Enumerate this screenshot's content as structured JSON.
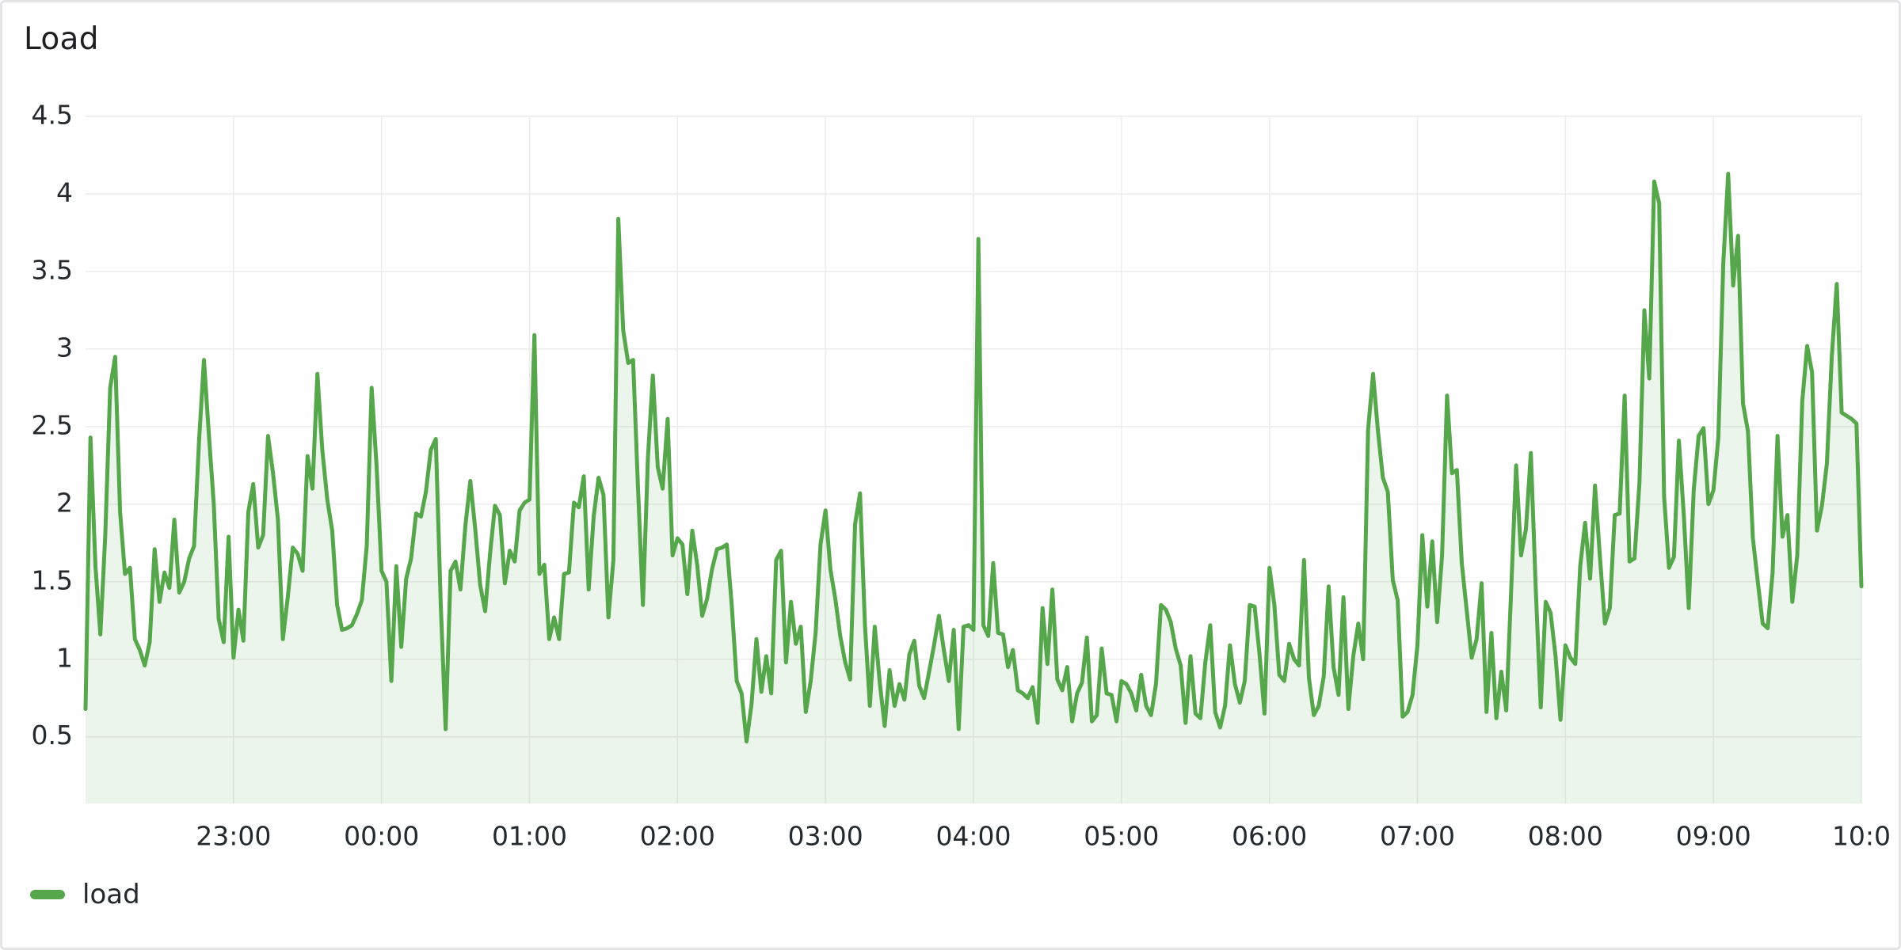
{
  "panel": {
    "title": "Load"
  },
  "chart_data": {
    "type": "area",
    "title": "Load",
    "xlabel": "",
    "ylabel": "",
    "ylim": [
      0.07,
      4.5
    ],
    "xlim": [
      "22:00",
      "10:00"
    ],
    "y_ticks": [
      "0.5",
      "1",
      "1.5",
      "2",
      "2.5",
      "3",
      "3.5",
      "4",
      "4.5"
    ],
    "x_ticks": [
      "23:00",
      "00:00",
      "01:00",
      "02:00",
      "03:00",
      "04:00",
      "05:00",
      "06:00",
      "07:00",
      "08:00",
      "09:00",
      "10:0"
    ],
    "grid": true,
    "legend": "bottom-left",
    "colors": {
      "line": "#56a64b",
      "fill": "#56a64b",
      "grid": "#ececec"
    },
    "series": [
      {
        "name": "load",
        "x": [
          "22:00",
          "22:02",
          "22:04",
          "22:06",
          "22:08",
          "22:10",
          "22:12",
          "22:14",
          "22:16",
          "22:18",
          "22:20",
          "22:22",
          "22:24",
          "22:26",
          "22:28",
          "22:30",
          "22:32",
          "22:34",
          "22:36",
          "22:38",
          "22:40",
          "22:42",
          "22:44",
          "22:46",
          "22:48",
          "22:50",
          "22:52",
          "22:54",
          "22:56",
          "22:58",
          "23:00",
          "23:02",
          "23:04",
          "23:06",
          "23:08",
          "23:10",
          "23:12",
          "23:14",
          "23:16",
          "23:18",
          "23:20",
          "23:22",
          "23:24",
          "23:26",
          "23:28",
          "23:30",
          "23:32",
          "23:34",
          "23:36",
          "23:38",
          "23:40",
          "23:42",
          "23:44",
          "23:46",
          "23:48",
          "23:50",
          "23:52",
          "23:54",
          "23:56",
          "23:58",
          "00:00",
          "00:02",
          "00:04",
          "00:06",
          "00:08",
          "00:10",
          "00:12",
          "00:14",
          "00:16",
          "00:18",
          "00:20",
          "00:22",
          "00:24",
          "00:26",
          "00:28",
          "00:30",
          "00:32",
          "00:34",
          "00:36",
          "00:38",
          "00:40",
          "00:42",
          "00:44",
          "00:46",
          "00:48",
          "00:50",
          "00:52",
          "00:54",
          "00:56",
          "00:58",
          "01:00",
          "01:02",
          "01:04",
          "01:06",
          "01:08",
          "01:10",
          "01:12",
          "01:14",
          "01:16",
          "01:18",
          "01:20",
          "01:22",
          "01:24",
          "01:26",
          "01:28",
          "01:30",
          "01:32",
          "01:34",
          "01:36",
          "01:38",
          "01:40",
          "01:42",
          "01:44",
          "01:46",
          "01:48",
          "01:50",
          "01:52",
          "01:54",
          "01:56",
          "01:58",
          "02:00",
          "02:02",
          "02:04",
          "02:06",
          "02:08",
          "02:10",
          "02:12",
          "02:14",
          "02:16",
          "02:18",
          "02:20",
          "02:22",
          "02:24",
          "02:26",
          "02:28",
          "02:30",
          "02:32",
          "02:34",
          "02:36",
          "02:38",
          "02:40",
          "02:42",
          "02:44",
          "02:46",
          "02:48",
          "02:50",
          "02:52",
          "02:54",
          "02:56",
          "02:58",
          "03:00",
          "03:02",
          "03:04",
          "03:06",
          "03:08",
          "03:10",
          "03:12",
          "03:14",
          "03:16",
          "03:18",
          "03:20",
          "03:22",
          "03:24",
          "03:26",
          "03:28",
          "03:30",
          "03:32",
          "03:34",
          "03:36",
          "03:38",
          "03:40",
          "03:42",
          "03:44",
          "03:46",
          "03:48",
          "03:50",
          "03:52",
          "03:54",
          "03:56",
          "03:58",
          "04:00",
          "04:02",
          "04:04",
          "04:06",
          "04:08",
          "04:10",
          "04:12",
          "04:14",
          "04:16",
          "04:18",
          "04:20",
          "04:22",
          "04:24",
          "04:26",
          "04:28",
          "04:30",
          "04:32",
          "04:34",
          "04:36",
          "04:38",
          "04:40",
          "04:42",
          "04:44",
          "04:46",
          "04:48",
          "04:50",
          "04:52",
          "04:54",
          "04:56",
          "04:58",
          "05:00",
          "05:02",
          "05:04",
          "05:06",
          "05:08",
          "05:10",
          "05:12",
          "05:14",
          "05:16",
          "05:18",
          "05:20",
          "05:22",
          "05:24",
          "05:26",
          "05:28",
          "05:30",
          "05:32",
          "05:34",
          "05:36",
          "05:38",
          "05:40",
          "05:42",
          "05:44",
          "05:46",
          "05:48",
          "05:50",
          "05:52",
          "05:54",
          "05:56",
          "05:58",
          "06:00",
          "06:02",
          "06:04",
          "06:06",
          "06:08",
          "06:10",
          "06:12",
          "06:14",
          "06:16",
          "06:18",
          "06:20",
          "06:22",
          "06:24",
          "06:26",
          "06:28",
          "06:30",
          "06:32",
          "06:34",
          "06:36",
          "06:38",
          "06:40",
          "06:42",
          "06:44",
          "06:46",
          "06:48",
          "06:50",
          "06:52",
          "06:54",
          "06:56",
          "06:58",
          "07:00",
          "07:02",
          "07:04",
          "07:06",
          "07:08",
          "07:10",
          "07:12",
          "07:14",
          "07:16",
          "07:18",
          "07:20",
          "07:22",
          "07:24",
          "07:26",
          "07:28",
          "07:30",
          "07:32",
          "07:34",
          "07:36",
          "07:38",
          "07:40",
          "07:42",
          "07:44",
          "07:46",
          "07:48",
          "07:50",
          "07:52",
          "07:54",
          "07:56",
          "07:58",
          "08:00",
          "08:02",
          "08:04",
          "08:06",
          "08:08",
          "08:10",
          "08:12",
          "08:14",
          "08:16",
          "08:18",
          "08:20",
          "08:22",
          "08:24",
          "08:26",
          "08:28",
          "08:30",
          "08:32",
          "08:34",
          "08:36",
          "08:38",
          "08:40",
          "08:42",
          "08:44",
          "08:46",
          "08:48",
          "08:50",
          "08:52",
          "08:54",
          "08:56",
          "08:58",
          "09:00",
          "09:02",
          "09:04",
          "09:06",
          "09:08",
          "09:10",
          "09:12",
          "09:14",
          "09:16",
          "09:18",
          "09:20",
          "09:22",
          "09:24",
          "09:26",
          "09:28",
          "09:30",
          "09:32",
          "09:34",
          "09:36",
          "09:38",
          "09:40",
          "09:42",
          "09:44",
          "09:46",
          "09:48",
          "09:50",
          "09:52",
          "09:54",
          "09:56",
          "09:58",
          "10:00"
        ],
        "values": [
          0.68,
          2.43,
          1.6,
          1.16,
          1.8,
          2.75,
          2.95,
          1.95,
          1.55,
          1.59,
          1.13,
          1.06,
          0.96,
          1.11,
          1.71,
          1.37,
          1.56,
          1.46,
          1.9,
          1.43,
          1.5,
          1.65,
          1.73,
          2.4,
          2.93,
          2.45,
          2.0,
          1.26,
          1.11,
          1.79,
          1.01,
          1.32,
          1.12,
          1.95,
          2.13,
          1.72,
          1.8,
          2.44,
          2.2,
          1.9,
          1.13,
          1.4,
          1.72,
          1.68,
          1.57,
          2.31,
          2.1,
          2.84,
          2.35,
          2.03,
          1.83,
          1.35,
          1.19,
          1.2,
          1.22,
          1.29,
          1.38,
          1.73,
          2.75,
          2.25,
          1.57,
          1.5,
          0.86,
          1.6,
          1.08,
          1.52,
          1.65,
          1.94,
          1.92,
          2.08,
          2.35,
          2.42,
          1.36,
          0.55,
          1.57,
          1.63,
          1.45,
          1.86,
          2.15,
          1.84,
          1.48,
          1.31,
          1.68,
          1.99,
          1.93,
          1.49,
          1.7,
          1.63,
          1.96,
          2.01,
          2.03,
          3.09,
          1.55,
          1.61,
          1.13,
          1.27,
          1.13,
          1.55,
          1.56,
          2.01,
          1.98,
          2.18,
          1.45,
          1.92,
          2.17,
          2.06,
          1.27,
          1.64,
          3.84,
          3.12,
          2.91,
          2.93,
          2.1,
          1.35,
          2.3,
          2.83,
          2.24,
          2.1,
          2.55,
          1.67,
          1.78,
          1.74,
          1.42,
          1.83,
          1.61,
          1.28,
          1.39,
          1.58,
          1.71,
          1.72,
          1.74,
          1.35,
          0.86,
          0.78,
          0.47,
          0.71,
          1.13,
          0.79,
          1.02,
          0.78,
          1.64,
          1.7,
          0.98,
          1.37,
          1.1,
          1.21,
          0.66,
          0.86,
          1.17,
          1.74,
          1.96,
          1.58,
          1.39,
          1.15,
          0.98,
          0.87,
          1.87,
          2.07,
          1.22,
          0.7,
          1.21,
          0.85,
          0.57,
          0.93,
          0.7,
          0.84,
          0.74,
          1.03,
          1.12,
          0.83,
          0.75,
          0.92,
          1.09,
          1.28,
          1.06,
          0.86,
          1.19,
          0.55,
          1.21,
          1.22,
          1.19,
          3.71,
          1.22,
          1.15,
          1.62,
          1.17,
          1.16,
          0.95,
          1.06,
          0.8,
          0.78,
          0.75,
          0.82,
          0.59,
          1.33,
          0.97,
          1.45,
          0.87,
          0.8,
          0.95,
          0.6,
          0.78,
          0.85,
          1.14,
          0.6,
          0.64,
          1.07,
          0.78,
          0.77,
          0.6,
          0.86,
          0.84,
          0.78,
          0.67,
          0.9,
          0.7,
          0.64,
          0.84,
          1.35,
          1.32,
          1.24,
          1.07,
          0.96,
          0.59,
          1.02,
          0.65,
          0.62,
          0.98,
          1.22,
          0.66,
          0.56,
          0.7,
          1.09,
          0.84,
          0.72,
          0.86,
          1.35,
          1.34,
          1.03,
          0.65,
          1.59,
          1.35,
          0.9,
          0.86,
          1.1,
          1.0,
          0.96,
          1.64,
          0.88,
          0.64,
          0.7,
          0.89,
          1.47,
          0.95,
          0.77,
          1.4,
          0.68,
          1.02,
          1.23,
          1.0,
          2.48,
          2.84,
          2.47,
          2.17,
          2.08,
          1.51,
          1.38,
          0.63,
          0.66,
          0.77,
          1.09,
          1.8,
          1.34,
          1.76,
          1.24,
          1.67,
          2.7,
          2.2,
          2.22,
          1.62,
          1.31,
          1.01,
          1.13,
          1.49,
          0.66,
          1.17,
          0.62,
          0.92,
          0.67,
          1.44,
          2.25,
          1.67,
          1.84,
          2.33,
          1.44,
          0.69,
          1.37,
          1.3,
          1.02,
          0.61,
          1.09,
          1.01,
          0.97,
          1.6,
          1.88,
          1.52,
          2.12,
          1.66,
          1.23,
          1.33,
          1.93,
          1.94,
          2.7,
          1.63,
          1.65,
          2.14,
          3.25,
          2.81,
          4.08,
          3.94,
          2.05,
          1.59,
          1.66,
          2.41,
          1.93,
          1.33,
          2.09,
          2.44,
          2.49,
          2.0,
          2.09,
          2.43,
          3.55,
          4.13,
          3.41,
          3.73,
          2.65,
          2.47,
          1.78,
          1.5,
          1.23,
          1.2,
          1.56,
          2.44,
          1.79,
          1.93,
          1.37,
          1.67,
          2.66,
          3.02,
          2.85,
          1.83,
          1.99,
          2.26,
          2.95,
          3.42,
          2.59,
          2.57,
          2.55,
          2.52,
          1.47
        ]
      }
    ]
  }
}
